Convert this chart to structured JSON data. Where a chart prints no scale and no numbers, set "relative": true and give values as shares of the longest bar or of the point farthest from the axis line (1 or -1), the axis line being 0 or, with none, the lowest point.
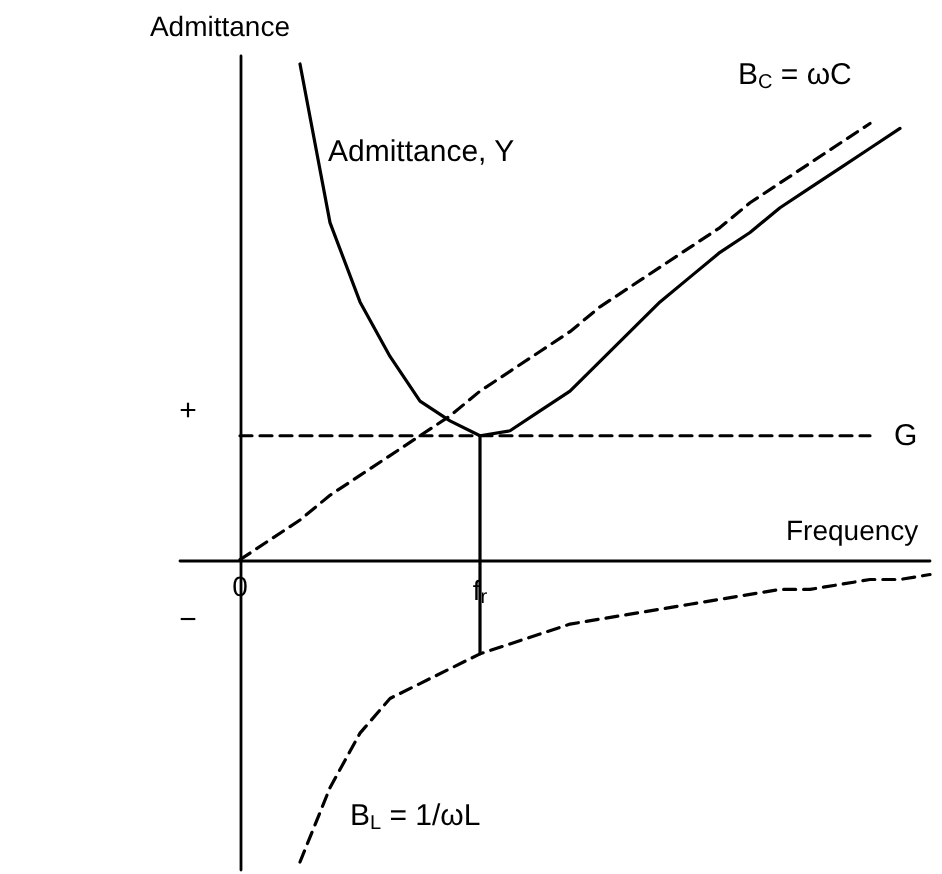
{
  "chart_data": {
    "type": "line",
    "relative": true,
    "xlabel": "Frequency",
    "ylabel": "Admittance",
    "marker": "none",
    "grid": false,
    "categories": [
      null,
      null,
      "0",
      null,
      null,
      null,
      null,
      null,
      null,
      null,
      "f$_{r}$",
      null,
      null,
      null,
      null,
      null,
      null,
      null,
      null,
      null,
      null,
      null,
      null,
      null,
      null,
      null
    ],
    "annotations": [
      "+",
      "−"
    ],
    "series": [
      {
        "name": "Admittance, Y",
        "color": "#000000",
        "line_style": "solid",
        "values": [
          null,
          null,
          null,
          null,
          1.0,
          0.68,
          0.52,
          0.41,
          0.32,
          0.28,
          0.25,
          0.26,
          0.3,
          0.34,
          0.4,
          0.46,
          0.52,
          0.57,
          0.62,
          0.66,
          0.71,
          0.75,
          0.79,
          0.83,
          0.87,
          null
        ]
      },
      {
        "name": "B$_{C}$ = ωC",
        "color": "#000000",
        "line_style": "dashed",
        "values": [
          null,
          null,
          0,
          0.04,
          0.08,
          0.13,
          0.17,
          0.21,
          0.25,
          0.29,
          0.34,
          0.38,
          0.42,
          0.46,
          0.51,
          0.55,
          0.59,
          0.63,
          0.67,
          0.72,
          0.76,
          0.8,
          0.84,
          0.88,
          null,
          null
        ]
      },
      {
        "name": "G",
        "color": "#000000",
        "line_style": "dashed",
        "values": [
          null,
          null,
          0.25,
          0.25,
          0.25,
          0.25,
          0.25,
          0.25,
          0.25,
          0.25,
          0.25,
          0.25,
          0.25,
          0.25,
          0.25,
          0.25,
          0.25,
          0.25,
          0.25,
          0.25,
          0.25,
          0.25,
          0.25,
          0.25,
          null,
          null
        ]
      },
      {
        "name": "B$_{L}$ = 1/ωL",
        "color": "#000000",
        "line_style": "dashed",
        "values": [
          null,
          null,
          null,
          null,
          -0.61,
          -0.46,
          -0.35,
          -0.28,
          -0.25,
          -0.22,
          -0.19,
          -0.17,
          -0.15,
          -0.13,
          -0.12,
          -0.11,
          -0.1,
          -0.09,
          -0.08,
          -0.07,
          -0.06,
          -0.06,
          -0.05,
          -0.04,
          -0.04,
          -0.03
        ]
      },
      {
        "color": "#000000",
        "line_style": "solid",
        "x": [
          "f$_{r}$",
          "f$_{r}$"
        ],
        "values": [
          0.25,
          -0.19
        ]
      }
    ]
  }
}
